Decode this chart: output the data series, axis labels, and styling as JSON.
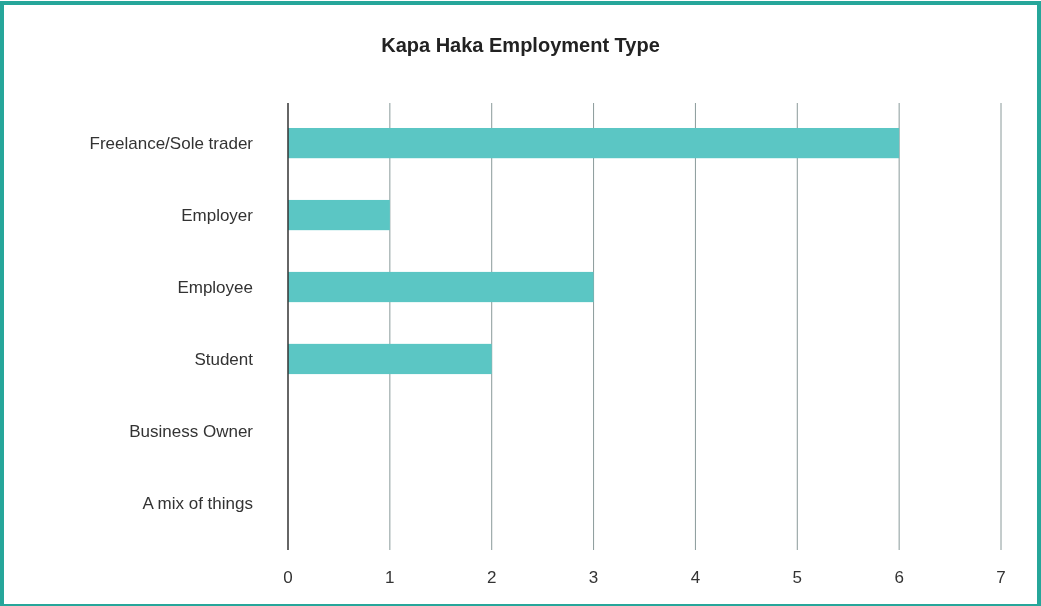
{
  "chart_data": {
    "type": "bar",
    "orientation": "horizontal",
    "title": "Kapa Haka Employment Type",
    "categories": [
      "Freelance/Sole trader",
      "Employer",
      "Employee",
      "Student",
      "Business Owner",
      "A mix of things"
    ],
    "values": [
      6,
      1,
      3,
      2,
      0,
      0
    ],
    "color": "#5bc6c4",
    "xlim": [
      0,
      7
    ],
    "xticks": [
      0,
      1,
      2,
      3,
      4,
      5,
      6,
      7
    ],
    "grid": "x"
  }
}
